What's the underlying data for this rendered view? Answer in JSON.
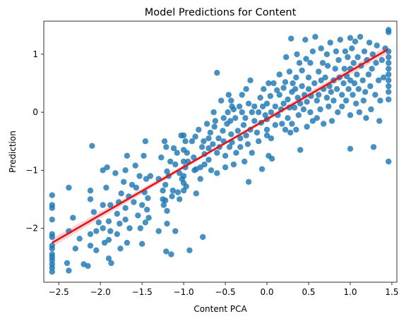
{
  "chart_data": {
    "type": "scatter",
    "title": "Model Predictions for Content",
    "xlabel": "Content PCA",
    "ylabel": "Prediction",
    "xlim": [
      -2.68,
      1.56
    ],
    "ylim": [
      -2.93,
      1.57
    ],
    "xticks": [
      -2.5,
      -2.0,
      -1.5,
      -1.0,
      -0.5,
      0.0,
      0.5,
      1.0,
      1.5
    ],
    "xtick_labels": [
      "−2.5",
      "−2.0",
      "−1.5",
      "−1.0",
      "−0.5",
      "0.0",
      "0.5",
      "1.0",
      "1.5"
    ],
    "yticks": [
      -2,
      -1,
      0,
      1
    ],
    "ytick_labels": [
      "−2",
      "−1",
      "0",
      "1"
    ],
    "grid": false,
    "legend": "none",
    "point_color": "#1f77b4",
    "fit_color": "#e3141b",
    "regression_line": {
      "x": [
        -2.58,
        1.45
      ],
      "y": [
        -2.25,
        1.08
      ]
    },
    "points": [
      [
        -2.58,
        -1.43
      ],
      [
        -2.58,
        -1.6
      ],
      [
        -2.58,
        -1.65
      ],
      [
        -2.58,
        -1.85
      ],
      [
        -2.58,
        -2.1
      ],
      [
        -2.58,
        -2.15
      ],
      [
        -2.58,
        -2.3
      ],
      [
        -2.58,
        -2.35
      ],
      [
        -2.58,
        -2.45
      ],
      [
        -2.58,
        -2.5
      ],
      [
        -2.58,
        -2.55
      ],
      [
        -2.58,
        -2.62
      ],
      [
        -2.58,
        -2.68
      ],
      [
        -2.58,
        -2.75
      ],
      [
        -2.4,
        -2.6
      ],
      [
        -2.38,
        -2.73
      ],
      [
        -2.38,
        -1.3
      ],
      [
        -2.38,
        -2.05
      ],
      [
        -2.33,
        -1.82
      ],
      [
        -2.3,
        -2.35
      ],
      [
        -2.25,
        -2.18
      ],
      [
        -2.2,
        -2.62
      ],
      [
        -2.15,
        -2.65
      ],
      [
        -2.12,
        -1.35
      ],
      [
        -2.12,
        -1.5
      ],
      [
        -2.12,
        -2.1
      ],
      [
        -2.12,
        -2.3
      ],
      [
        -2.1,
        -0.58
      ],
      [
        -2.08,
        -1.72
      ],
      [
        -2.05,
        -2.05
      ],
      [
        -2.05,
        -2.38
      ],
      [
        -2.02,
        -1.9
      ],
      [
        -1.97,
        -1.0
      ],
      [
        -1.97,
        -1.6
      ],
      [
        -1.97,
        -2.0
      ],
      [
        -1.95,
        -2.25
      ],
      [
        -1.93,
        -1.3
      ],
      [
        -1.92,
        -0.95
      ],
      [
        -1.9,
        -1.88
      ],
      [
        -1.9,
        -2.2
      ],
      [
        -1.9,
        -2.52
      ],
      [
        -1.88,
        -1.6
      ],
      [
        -1.88,
        -2.05
      ],
      [
        -1.87,
        -2.6
      ],
      [
        -1.82,
        -1.05
      ],
      [
        -1.8,
        -1.75
      ],
      [
        -1.8,
        -2.1
      ],
      [
        -1.78,
        -1.55
      ],
      [
        -1.77,
        -1.92
      ],
      [
        -1.76,
        -2.35
      ],
      [
        -1.75,
        -1.4
      ],
      [
        -1.72,
        -1.2
      ],
      [
        -1.7,
        -1.0
      ],
      [
        -1.7,
        -1.65
      ],
      [
        -1.7,
        -1.85
      ],
      [
        -1.68,
        -0.75
      ],
      [
        -1.68,
        -2.25
      ],
      [
        -1.66,
        -1.45
      ],
      [
        -1.65,
        -2.0
      ],
      [
        -1.62,
        -1.25
      ],
      [
        -1.6,
        -1.55
      ],
      [
        -1.58,
        -0.92
      ],
      [
        -1.57,
        -1.3
      ],
      [
        -1.55,
        -1.78
      ],
      [
        -1.53,
        -1.1
      ],
      [
        -1.52,
        -2.0
      ],
      [
        -1.5,
        -1.6
      ],
      [
        -1.5,
        -2.27
      ],
      [
        -1.48,
        -0.75
      ],
      [
        -1.47,
        -1.38
      ],
      [
        -1.46,
        -0.5
      ],
      [
        -1.46,
        -1.9
      ],
      [
        -1.45,
        -1.15
      ],
      [
        -1.44,
        -1.68
      ],
      [
        -1.43,
        -1.48
      ],
      [
        -1.42,
        -1.82
      ],
      [
        -1.4,
        -1.1
      ],
      [
        -1.3,
        -1.15
      ],
      [
        -1.3,
        -2.05
      ],
      [
        -1.27,
        -0.78
      ],
      [
        -1.25,
        -1.35
      ],
      [
        -1.25,
        -1.5
      ],
      [
        -1.24,
        -1.6
      ],
      [
        -1.23,
        -0.5
      ],
      [
        -1.22,
        -1.25
      ],
      [
        -1.22,
        -1.52
      ],
      [
        -1.21,
        -0.6
      ],
      [
        -1.21,
        -2.4
      ],
      [
        -1.2,
        -1.02
      ],
      [
        -1.2,
        -1.7
      ],
      [
        -1.2,
        -1.92
      ],
      [
        -1.18,
        -1.1
      ],
      [
        -1.16,
        -0.85
      ],
      [
        -1.15,
        -2.45
      ],
      [
        -1.14,
        -1.45
      ],
      [
        -1.13,
        -1.35
      ],
      [
        -1.12,
        -0.62
      ],
      [
        -1.1,
        -0.9
      ],
      [
        -1.1,
        -2.05
      ],
      [
        -1.08,
        -0.7
      ],
      [
        -1.07,
        -1.38
      ],
      [
        -1.05,
        -1.05
      ],
      [
        -1.05,
        -1.5
      ],
      [
        -1.03,
        -0.4
      ],
      [
        -1.02,
        -1.15
      ],
      [
        -1.0,
        -0.4
      ],
      [
        -1.0,
        -0.65
      ],
      [
        -1.0,
        -0.85
      ],
      [
        -1.0,
        -1.1
      ],
      [
        -1.0,
        -1.22
      ],
      [
        -1.0,
        -1.35
      ],
      [
        -0.98,
        -0.5
      ],
      [
        -0.98,
        -0.95
      ],
      [
        -0.97,
        -1.28
      ],
      [
        -0.96,
        -0.7
      ],
      [
        -0.95,
        -0.85
      ],
      [
        -0.93,
        -2.38
      ],
      [
        -0.9,
        -0.5
      ],
      [
        -0.88,
        -0.78
      ],
      [
        -0.87,
        -1.0
      ],
      [
        -0.86,
        -0.42
      ],
      [
        -0.85,
        -0.98
      ],
      [
        -0.85,
        -1.4
      ],
      [
        -0.82,
        -0.3
      ],
      [
        -0.8,
        -0.95
      ],
      [
        -0.8,
        -1.15
      ],
      [
        -0.78,
        -0.6
      ],
      [
        -0.77,
        -2.15
      ],
      [
        -0.76,
        -0.5
      ],
      [
        -0.75,
        -0.72
      ],
      [
        -0.75,
        -0.9
      ],
      [
        -0.72,
        -0.2
      ],
      [
        -0.7,
        -0.45
      ],
      [
        -0.7,
        -0.62
      ],
      [
        -0.7,
        -0.82
      ],
      [
        -0.68,
        -0.35
      ],
      [
        -0.67,
        -1.0
      ],
      [
        -0.65,
        -0.55
      ],
      [
        -0.64,
        0.0
      ],
      [
        -0.63,
        -0.25
      ],
      [
        -0.62,
        -0.15
      ],
      [
        -0.6,
        -0.7
      ],
      [
        -0.6,
        -1.05
      ],
      [
        -0.6,
        0.68
      ],
      [
        -0.58,
        -0.45
      ],
      [
        -0.57,
        -0.6
      ],
      [
        -0.55,
        0.2
      ],
      [
        -0.53,
        -0.32
      ],
      [
        -0.52,
        -0.1
      ],
      [
        -0.52,
        -0.5
      ],
      [
        -0.5,
        -0.75
      ],
      [
        -0.5,
        -0.95
      ],
      [
        -0.48,
        -0.2
      ],
      [
        -0.47,
        0.0
      ],
      [
        -0.46,
        0.3
      ],
      [
        -0.45,
        -0.6
      ],
      [
        -0.44,
        -0.15
      ],
      [
        -0.43,
        0.2
      ],
      [
        -0.43,
        -0.38
      ],
      [
        -0.42,
        -0.52
      ],
      [
        -0.42,
        0.1
      ],
      [
        -0.4,
        0.05
      ],
      [
        -0.4,
        -0.9
      ],
      [
        -0.38,
        -0.1
      ],
      [
        -0.37,
        -0.7
      ],
      [
        -0.35,
        -0.32
      ],
      [
        -0.33,
        0.1
      ],
      [
        -0.32,
        -0.45
      ],
      [
        -0.32,
        -0.6
      ],
      [
        -0.3,
        0.0
      ],
      [
        -0.3,
        0.3
      ],
      [
        -0.28,
        -0.22
      ],
      [
        -0.27,
        -0.85
      ],
      [
        -0.26,
        -0.1
      ],
      [
        -0.25,
        0.4
      ],
      [
        -0.25,
        -0.4
      ],
      [
        -0.23,
        -0.55
      ],
      [
        -0.22,
        0.15
      ],
      [
        -0.22,
        -1.2
      ],
      [
        -0.2,
        -0.3
      ],
      [
        -0.2,
        0.55
      ],
      [
        -0.18,
        0.0
      ],
      [
        -0.18,
        -0.7
      ],
      [
        -0.15,
        -0.15
      ],
      [
        -0.15,
        0.1
      ],
      [
        -0.12,
        -0.35
      ],
      [
        -0.1,
        0.0
      ],
      [
        -0.1,
        -0.5
      ],
      [
        -0.08,
        0.25
      ],
      [
        -0.07,
        -0.18
      ],
      [
        -0.06,
        -0.98
      ],
      [
        -0.05,
        0.1
      ],
      [
        -0.04,
        0.4
      ],
      [
        -0.02,
        -0.05
      ],
      [
        0.0,
        -0.12
      ],
      [
        0.0,
        0.15
      ],
      [
        0.0,
        -0.4
      ],
      [
        0.0,
        -0.3
      ],
      [
        0.02,
        0.5
      ],
      [
        0.02,
        -0.75
      ],
      [
        0.04,
        0.28
      ],
      [
        0.05,
        0.0
      ],
      [
        0.05,
        -0.45
      ],
      [
        0.06,
        -0.8
      ],
      [
        0.08,
        0.5
      ],
      [
        0.1,
        0.1
      ],
      [
        0.1,
        -0.22
      ],
      [
        0.12,
        0.38
      ],
      [
        0.13,
        -0.05
      ],
      [
        0.15,
        0.3
      ],
      [
        0.15,
        0.65
      ],
      [
        0.17,
        0.05
      ],
      [
        0.18,
        -0.2
      ],
      [
        0.2,
        0.42
      ],
      [
        0.2,
        0.15
      ],
      [
        0.22,
        -0.3
      ],
      [
        0.22,
        0.52
      ],
      [
        0.23,
        0.95
      ],
      [
        0.25,
        0.22
      ],
      [
        0.25,
        -0.1
      ],
      [
        0.27,
        0.08
      ],
      [
        0.27,
        0.7
      ],
      [
        0.28,
        -0.35
      ],
      [
        0.29,
        1.27
      ],
      [
        0.3,
        0.35
      ],
      [
        0.3,
        -0.2
      ],
      [
        0.31,
        0.5
      ],
      [
        0.33,
        0.08
      ],
      [
        0.34,
        0.4
      ],
      [
        0.35,
        -0.3
      ],
      [
        0.35,
        0.6
      ],
      [
        0.36,
        1.0
      ],
      [
        0.37,
        0.25
      ],
      [
        0.38,
        -0.05
      ],
      [
        0.39,
        0.85
      ],
      [
        0.4,
        0.15
      ],
      [
        0.4,
        -0.65
      ],
      [
        0.42,
        0.45
      ],
      [
        0.42,
        0.72
      ],
      [
        0.44,
        0.05
      ],
      [
        0.45,
        0.3
      ],
      [
        0.46,
        1.25
      ],
      [
        0.47,
        0.92
      ],
      [
        0.48,
        0.18
      ],
      [
        0.48,
        -0.25
      ],
      [
        0.5,
        0.4
      ],
      [
        0.5,
        0.6
      ],
      [
        0.52,
        0.0
      ],
      [
        0.52,
        0.85
      ],
      [
        0.53,
        0.28
      ],
      [
        0.55,
        1.05
      ],
      [
        0.55,
        -0.15
      ],
      [
        0.57,
        0.5
      ],
      [
        0.58,
        1.3
      ],
      [
        0.6,
        0.2
      ],
      [
        0.6,
        -0.1
      ],
      [
        0.62,
        0.7
      ],
      [
        0.62,
        0.3
      ],
      [
        0.64,
        0.05
      ],
      [
        0.65,
        0.55
      ],
      [
        0.65,
        1.1
      ],
      [
        0.67,
        0.85
      ],
      [
        0.68,
        -0.2
      ],
      [
        0.68,
        0.4
      ],
      [
        0.7,
        0.6
      ],
      [
        0.72,
        0.25
      ],
      [
        0.72,
        1.0
      ],
      [
        0.73,
        0.8
      ],
      [
        0.74,
        0.1
      ],
      [
        0.75,
        0.45
      ],
      [
        0.76,
        1.2
      ],
      [
        0.77,
        0.35
      ],
      [
        0.78,
        -0.15
      ],
      [
        0.8,
        0.55
      ],
      [
        0.8,
        0.2
      ],
      [
        0.82,
        0.75
      ],
      [
        0.83,
        1.05
      ],
      [
        0.84,
        0.4
      ],
      [
        0.85,
        0.0
      ],
      [
        0.86,
        0.9
      ],
      [
        0.87,
        0.6
      ],
      [
        0.88,
        1.25
      ],
      [
        0.9,
        0.3
      ],
      [
        0.9,
        0.1
      ],
      [
        0.92,
        0.5
      ],
      [
        0.93,
        0.75
      ],
      [
        0.94,
        1.05
      ],
      [
        0.95,
        0.2
      ],
      [
        0.96,
        0.62
      ],
      [
        0.97,
        0.95
      ],
      [
        0.98,
        0.4
      ],
      [
        1.0,
        0.75
      ],
      [
        1.0,
        1.28
      ],
      [
        1.0,
        -0.05
      ],
      [
        1.0,
        0.55
      ],
      [
        1.0,
        -0.63
      ],
      [
        1.02,
        1.1
      ],
      [
        1.03,
        0.3
      ],
      [
        1.04,
        0.85
      ],
      [
        1.05,
        0.5
      ],
      [
        1.06,
        1.22
      ],
      [
        1.07,
        0.15
      ],
      [
        1.08,
        0.65
      ],
      [
        1.09,
        0.95
      ],
      [
        1.1,
        0.4
      ],
      [
        1.11,
        0.0
      ],
      [
        1.12,
        1.3
      ],
      [
        1.13,
        0.8
      ],
      [
        1.15,
        0.55
      ],
      [
        1.16,
        0.2
      ],
      [
        1.17,
        1.05
      ],
      [
        1.18,
        0.35
      ],
      [
        1.19,
        -0.1
      ],
      [
        1.2,
        0.9
      ],
      [
        1.22,
        0.65
      ],
      [
        1.23,
        1.2
      ],
      [
        1.24,
        0.45
      ],
      [
        1.25,
        0.05
      ],
      [
        1.26,
        0.75
      ],
      [
        1.27,
        1.0
      ],
      [
        1.28,
        -0.6
      ],
      [
        1.3,
        0.3
      ],
      [
        1.31,
        0.85
      ],
      [
        1.32,
        1.15
      ],
      [
        1.34,
        0.55
      ],
      [
        1.35,
        -0.15
      ],
      [
        1.36,
        0.2
      ],
      [
        1.38,
        0.9
      ],
      [
        1.4,
        0.6
      ],
      [
        1.42,
        1.1
      ],
      [
        1.46,
        1.38
      ],
      [
        1.46,
        1.42
      ],
      [
        1.46,
        1.05
      ],
      [
        1.46,
        0.95
      ],
      [
        1.46,
        0.85
      ],
      [
        1.46,
        0.75
      ],
      [
        1.46,
        0.65
      ],
      [
        1.46,
        0.55
      ],
      [
        1.46,
        0.45
      ],
      [
        1.46,
        0.35
      ],
      [
        1.46,
        0.22
      ],
      [
        1.46,
        -0.85
      ]
    ]
  }
}
